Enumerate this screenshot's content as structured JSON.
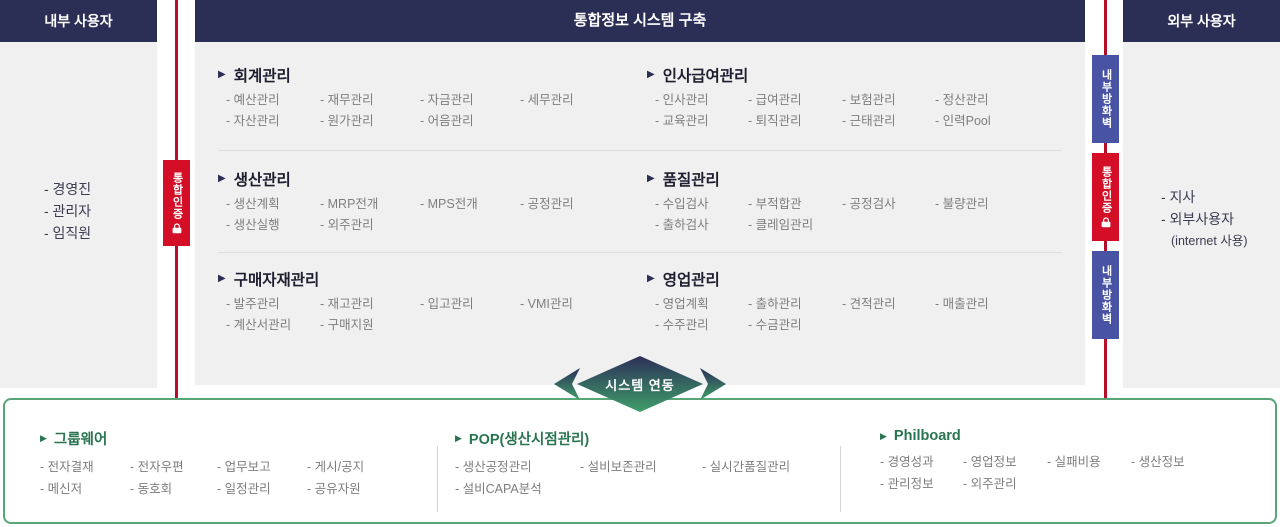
{
  "headers": {
    "internal_users": "내부 사용자",
    "system_title": "통합정보 시스템 구축",
    "external_users": "외부 사용자"
  },
  "internal_panel": {
    "items": [
      "- 경영진",
      "- 관리자",
      "- 임직원"
    ]
  },
  "external_panel": {
    "items": [
      "- 지사",
      "- 외부사용자",
      "(internet 사용)"
    ]
  },
  "security": {
    "left_badge": {
      "label": "통합인증"
    },
    "right_badges": [
      {
        "label": "내부방화벽"
      },
      {
        "label": "통합인증"
      },
      {
        "label": "내부방화벽"
      }
    ]
  },
  "icons": {
    "bullet": "▶"
  },
  "modules": [
    {
      "title": "회계관리",
      "items": [
        "- 예산관리",
        "- 재무관리",
        "- 자금관리",
        "- 세무관리",
        "- 자산관리",
        "- 원가관리",
        "- 어음관리"
      ]
    },
    {
      "title": "인사급여관리",
      "items": [
        "- 인사관리",
        "- 급여관리",
        "- 보험관리",
        "- 정산관리",
        "- 교육관리",
        "- 퇴직관리",
        "- 근태관리",
        "- 인력Pool"
      ]
    },
    {
      "title": "생산관리",
      "items": [
        "- 생산계획",
        "- MRP전개",
        "- MPS전개",
        "- 공정관리",
        "- 생산실행",
        "- 외주관리"
      ]
    },
    {
      "title": "품질관리",
      "items": [
        "- 수입검사",
        "- 부적합관",
        "- 공정검사",
        "- 불량관리",
        "- 출하검사",
        "- 클레임관리"
      ]
    },
    {
      "title": "구매자재관리",
      "items": [
        "- 발주관리",
        "- 재고관리",
        "- 입고관리",
        "- VMI관리",
        "- 계산서관리",
        "- 구매지원"
      ]
    },
    {
      "title": "영업관리",
      "items": [
        "- 영업계획",
        "- 출하관리",
        "- 견적관리",
        "- 매출관리",
        "- 수주관리",
        "- 수금관리"
      ]
    }
  ],
  "connector": {
    "label": "시스템 연동"
  },
  "bottom_sections": [
    {
      "title": "그룹웨어",
      "items": [
        "- 전자결재",
        "- 전자우편",
        "- 업무보고",
        "- 게시/공지",
        "- 메신저",
        "- 동호회",
        "- 일정관리",
        "- 공유자원"
      ]
    },
    {
      "title": "POP(생산시점관리)",
      "items": [
        "- 생산공정관리",
        "- 설비보존관리",
        "- 실시간품질관리",
        "- 설비CAPA분석"
      ]
    },
    {
      "title": "Philboard",
      "items": [
        "- 경영성과",
        "- 영업정보",
        "- 실패비용",
        "- 생산정보",
        "- 관리정보",
        "- 외주관리"
      ]
    }
  ],
  "colors": {
    "navy": "#2b2e55",
    "red_line": "#b60d29",
    "red_badge": "#d40e26",
    "blue_badge": "#4853a3",
    "green_title": "#2a7551",
    "green_border": "#58a678",
    "panel_gray": "#f0f0f0"
  }
}
